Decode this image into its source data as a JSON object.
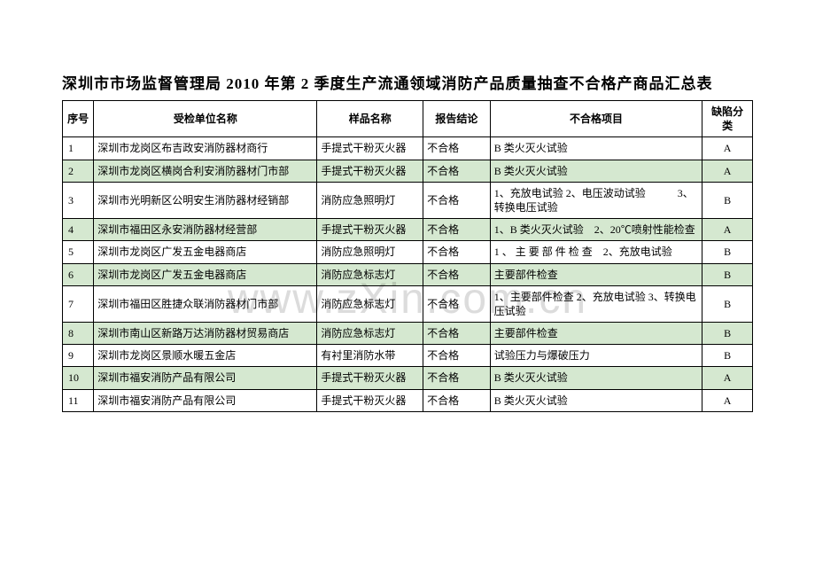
{
  "title": "深圳市市场监督管理局 2010 年第 2 季度生产流通领域消防产品质量抽查不合格产商品汇总表",
  "watermark": "www.zXin.com.cn",
  "columns": [
    "序号",
    "受检单位名称",
    "样品名称",
    "报告结论",
    "不合格项目",
    "缺陷分类"
  ],
  "rows": [
    {
      "seq": "1",
      "name": "深圳市龙岗区布吉政安消防器材商行",
      "sample": "手提式干粉灭火器",
      "conclusion": "不合格",
      "fail": "B 类火灭火试验",
      "defect": "A"
    },
    {
      "seq": "2",
      "name": "深圳市龙岗区横岗合利安消防器材门市部",
      "sample": "手提式干粉灭火器",
      "conclusion": "不合格",
      "fail": "B 类火灭火试验",
      "defect": "A"
    },
    {
      "seq": "3",
      "name": "深圳市光明新区公明安生消防器材经销部",
      "sample": "消防应急照明灯",
      "conclusion": "不合格",
      "fail": "1、充放电试验 2、电压波动试验　　　3、转换电压试验",
      "defect": "B"
    },
    {
      "seq": "4",
      "name": "深圳市福田区永安消防器材经营部",
      "sample": "手提式干粉灭火器",
      "conclusion": "不合格",
      "fail": "1、B 类火灭火试验　2、20℃喷射性能检查",
      "defect": "A"
    },
    {
      "seq": "5",
      "name": "深圳市龙岗区广发五金电器商店",
      "sample": "消防应急照明灯",
      "conclusion": "不合格",
      "fail": "1 、 主 要 部 件 检 查　2、充放电试验",
      "defect": "B"
    },
    {
      "seq": "6",
      "name": "深圳市龙岗区广发五金电器商店",
      "sample": "消防应急标志灯",
      "conclusion": "不合格",
      "fail": "主要部件检查",
      "defect": "B"
    },
    {
      "seq": "7",
      "name": "深圳市福田区胜捷众联消防器材门市部",
      "sample": "消防应急标志灯",
      "conclusion": "不合格",
      "fail": "1、主要部件检查 2、充放电试验 3、转换电压试验",
      "defect": "B"
    },
    {
      "seq": "8",
      "name": "深圳市南山区新路万达消防器材贸易商店",
      "sample": "消防应急标志灯",
      "conclusion": "不合格",
      "fail": "主要部件检查",
      "defect": "B"
    },
    {
      "seq": "9",
      "name": "深圳市龙岗区景顺水暖五金店",
      "sample": "有衬里消防水带",
      "conclusion": "不合格",
      "fail": "试验压力与爆破压力",
      "defect": "B"
    },
    {
      "seq": "10",
      "name": "深圳市福安消防产品有限公司",
      "sample": "手提式干粉灭火器",
      "conclusion": "不合格",
      "fail": "B 类火灭火试验",
      "defect": "A"
    },
    {
      "seq": "11",
      "name": "深圳市福安消防产品有限公司",
      "sample": "手提式干粉灭火器",
      "conclusion": "不合格",
      "fail": "B 类火灭火试验",
      "defect": "A"
    }
  ]
}
